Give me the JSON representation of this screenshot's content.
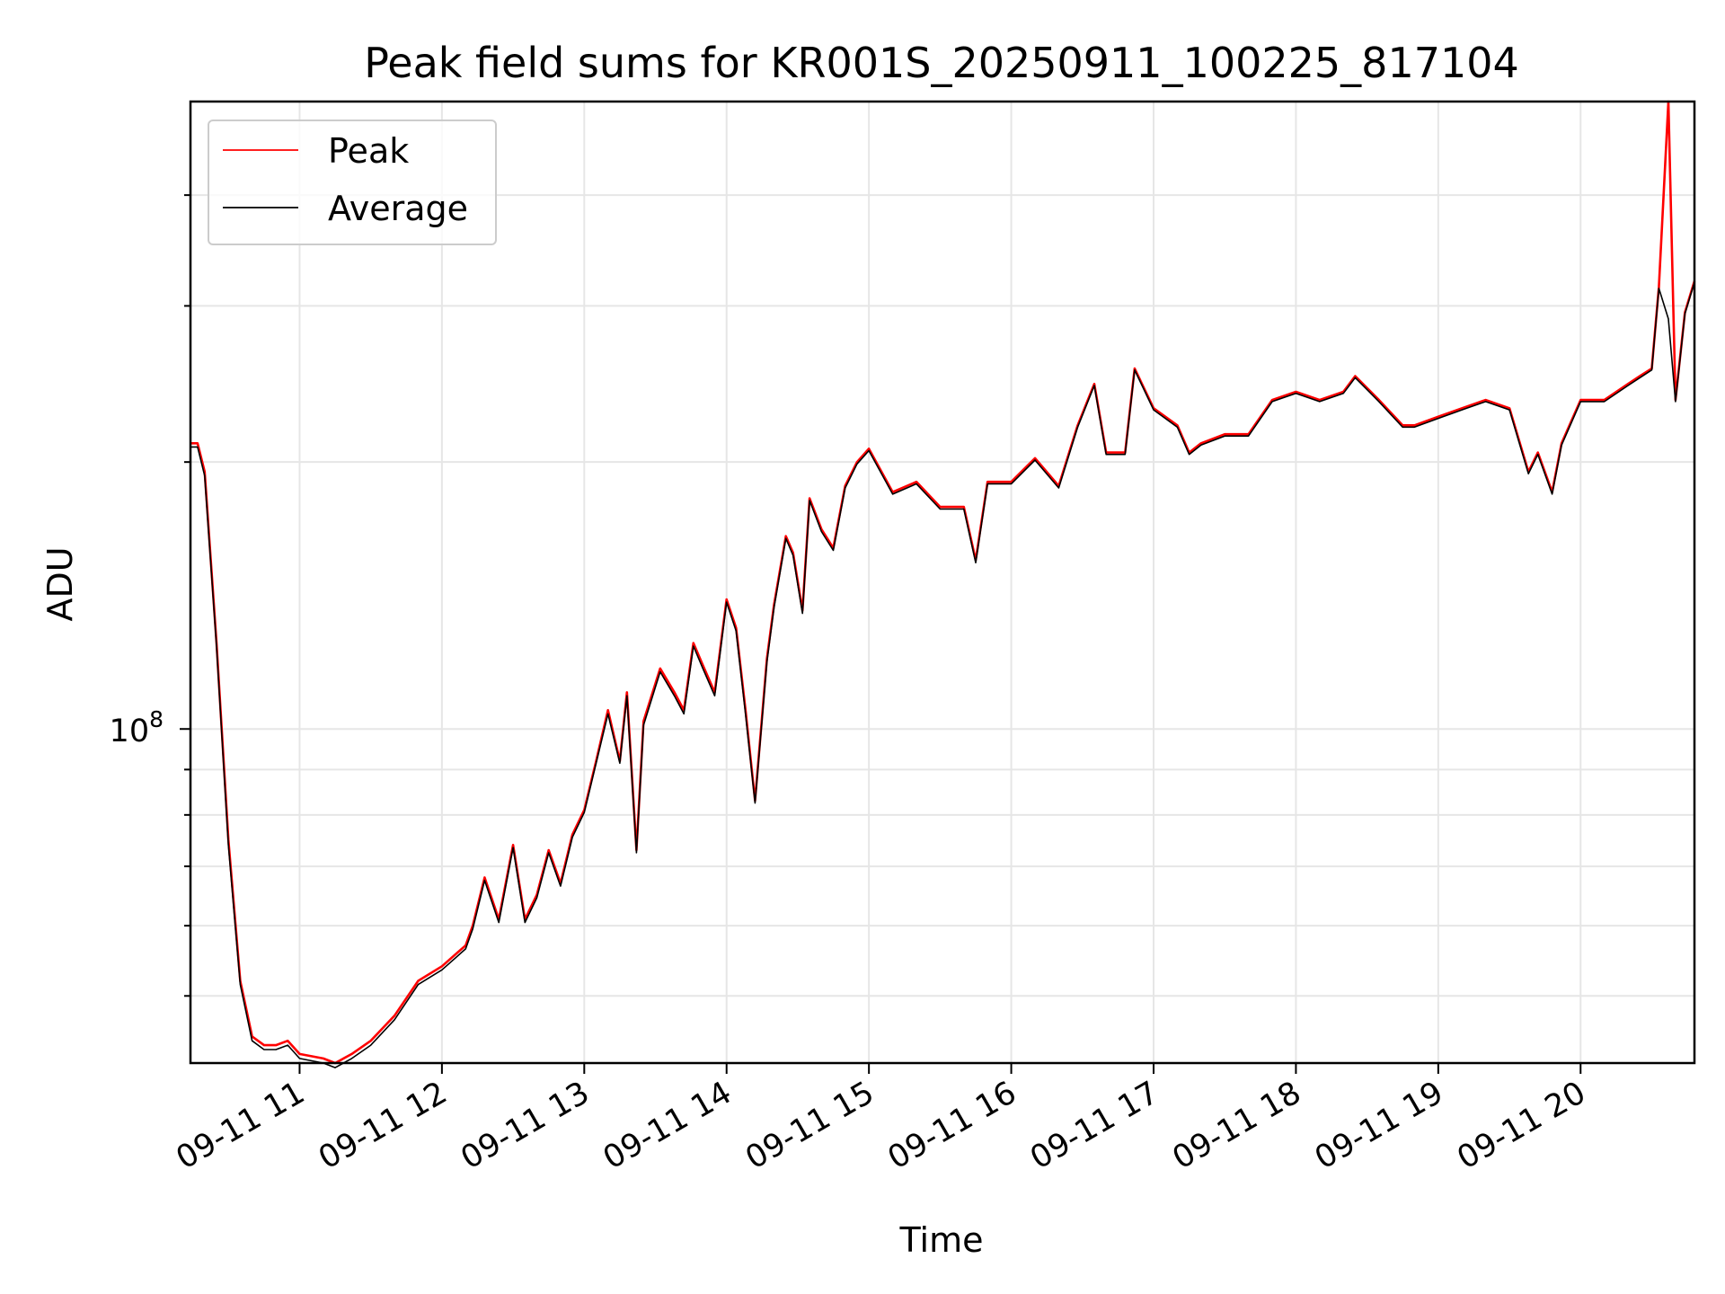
{
  "chart_data": {
    "type": "line",
    "title": "Peak field sums for KR001S_20250911_100225_817104",
    "xlabel": "Time",
    "ylabel": "ADU",
    "y_scale": "log",
    "x_tick_labels": [
      "09-11 11",
      "09-11 12",
      "09-11 13",
      "09-11 14",
      "09-11 15",
      "09-11 16",
      "09-11 17",
      "09-11 18",
      "09-11 19",
      "09-11 20"
    ],
    "y_tick_labels": [
      {
        "base": "10",
        "exponent": "8"
      }
    ],
    "xlim": [
      "09-11 10:14",
      "09-11 20:48"
    ],
    "ylim": [
      42000000.0,
      510000000.0
    ],
    "grid": true,
    "legend_location": "upper left",
    "colors": {
      "Peak": "#ff0000",
      "Average": "#000000"
    },
    "x": [
      "09-11 10:14",
      "09-11 10:17",
      "09-11 10:20",
      "09-11 10:25",
      "09-11 10:30",
      "09-11 10:35",
      "09-11 10:40",
      "09-11 10:45",
      "09-11 10:50",
      "09-11 10:55",
      "09-11 11:00",
      "09-11 11:10",
      "09-11 11:15",
      "09-11 11:22",
      "09-11 11:30",
      "09-11 11:40",
      "09-11 11:50",
      "09-11 12:00",
      "09-11 12:10",
      "09-11 12:13",
      "09-11 12:18",
      "09-11 12:24",
      "09-11 12:30",
      "09-11 12:35",
      "09-11 12:40",
      "09-11 12:45",
      "09-11 12:50",
      "09-11 12:55",
      "09-11 13:00",
      "09-11 13:05",
      "09-11 13:10",
      "09-11 13:15",
      "09-11 13:18",
      "09-11 13:22",
      "09-11 13:25",
      "09-11 13:32",
      "09-11 13:38",
      "09-11 13:42",
      "09-11 13:46",
      "09-11 13:50",
      "09-11 13:55",
      "09-11 14:00",
      "09-11 14:04",
      "09-11 14:08",
      "09-11 14:12",
      "09-11 14:17",
      "09-11 14:20",
      "09-11 14:25",
      "09-11 14:28",
      "09-11 14:32",
      "09-11 14:35",
      "09-11 14:40",
      "09-11 14:45",
      "09-11 14:50",
      "09-11 14:55",
      "09-11 15:00",
      "09-11 15:10",
      "09-11 15:20",
      "09-11 15:30",
      "09-11 15:40",
      "09-11 15:45",
      "09-11 15:50",
      "09-11 16:00",
      "09-11 16:10",
      "09-11 16:20",
      "09-11 16:28",
      "09-11 16:35",
      "09-11 16:40",
      "09-11 16:48",
      "09-11 16:52",
      "09-11 17:00",
      "09-11 17:10",
      "09-11 17:15",
      "09-11 17:20",
      "09-11 17:30",
      "09-11 17:40",
      "09-11 17:50",
      "09-11 18:00",
      "09-11 18:10",
      "09-11 18:20",
      "09-11 18:25",
      "09-11 18:35",
      "09-11 18:45",
      "09-11 18:50",
      "09-11 19:00",
      "09-11 19:10",
      "09-11 19:20",
      "09-11 19:30",
      "09-11 19:38",
      "09-11 19:42",
      "09-11 19:48",
      "09-11 19:52",
      "09-11 20:00",
      "09-11 20:10",
      "09-11 20:20",
      "09-11 20:25",
      "09-11 20:30",
      "09-11 20:33",
      "09-11 20:37",
      "09-11 20:40",
      "09-11 20:44",
      "09-11 20:48"
    ],
    "series": [
      {
        "name": "Peak",
        "values": [
          210000000.0,
          210000000.0,
          195000000.0,
          125000000.0,
          75000000.0,
          52000000.0,
          45000000.0,
          44000000.0,
          44000000.0,
          44500000.0,
          43000000.0,
          42500000.0,
          42000000.0,
          43000000.0,
          44500000.0,
          47500000.0,
          52000000.0,
          54000000.0,
          57000000.0,
          60000000.0,
          68000000.0,
          61000000.0,
          74000000.0,
          61000000.0,
          65000000.0,
          73000000.0,
          67000000.0,
          76000000.0,
          81000000.0,
          92000000.0,
          105000000.0,
          92000000.0,
          110000000.0,
          73000000.0,
          102000000.0,
          117000000.0,
          110000000.0,
          105000000.0,
          125000000.0,
          118000000.0,
          110000000.0,
          140000000.0,
          130000000.0,
          105000000.0,
          83000000.0,
          120000000.0,
          138000000.0,
          165000000.0,
          158000000.0,
          136000000.0,
          182000000.0,
          168000000.0,
          160000000.0,
          188000000.0,
          200000000.0,
          207000000.0,
          185000000.0,
          190000000.0,
          178000000.0,
          178000000.0,
          155000000.0,
          190000000.0,
          190000000.0,
          202000000.0,
          188000000.0,
          220000000.0,
          245000000.0,
          205000000.0,
          205000000.0,
          255000000.0,
          230000000.0,
          220000000.0,
          205000000.0,
          210000000.0,
          215000000.0,
          215000000.0,
          235000000.0,
          240000000.0,
          235000000.0,
          240000000.0,
          250000000.0,
          235000000.0,
          220000000.0,
          220000000.0,
          225000000.0,
          230000000.0,
          235000000.0,
          230000000.0,
          195000000.0,
          205000000.0,
          185000000.0,
          210000000.0,
          235000000.0,
          235000000.0,
          245000000.0,
          250000000.0,
          255000000.0,
          315000000.0,
          510000000.0,
          235000000.0,
          295000000.0,
          320000000.0
        ]
      },
      {
        "name": "Average",
        "values": [
          208000000.0,
          208000000.0,
          193000000.0,
          124000000.0,
          74000000.0,
          51500000.0,
          44500000.0,
          43500000.0,
          43500000.0,
          44000000.0,
          42500000.0,
          42000000.0,
          41500000.0,
          42500000.0,
          44000000.0,
          47000000.0,
          51500000.0,
          53500000.0,
          56500000.0,
          59500000.0,
          67500000.0,
          60500000.0,
          73500000.0,
          60500000.0,
          64500000.0,
          72500000.0,
          66500000.0,
          75500000.0,
          80500000.0,
          91500000.0,
          104000000.0,
          91500000.0,
          109000000.0,
          72500000.0,
          101000000.0,
          116000000.0,
          109000000.0,
          104000000.0,
          124000000.0,
          117000000.0,
          109000000.0,
          139000000.0,
          129000000.0,
          104000000.0,
          82500000.0,
          119000000.0,
          137000000.0,
          164000000.0,
          157000000.0,
          135000000.0,
          181000000.0,
          167000000.0,
          159000000.0,
          187000000.0,
          199000000.0,
          206000000.0,
          184000000.0,
          189000000.0,
          177000000.0,
          177000000.0,
          154000000.0,
          189000000.0,
          189000000.0,
          201000000.0,
          187000000.0,
          219000000.0,
          244000000.0,
          204000000.0,
          204000000.0,
          254000000.0,
          229000000.0,
          219000000.0,
          204000000.0,
          209000000.0,
          214000000.0,
          214000000.0,
          234000000.0,
          239000000.0,
          234000000.0,
          239000000.0,
          249000000.0,
          234000000.0,
          219000000.0,
          219000000.0,
          224000000.0,
          229000000.0,
          234000000.0,
          229000000.0,
          194000000.0,
          204000000.0,
          184000000.0,
          209000000.0,
          234000000.0,
          234000000.0,
          244000000.0,
          249000000.0,
          254000000.0,
          314000000.0,
          290000000.0,
          234000000.0,
          294000000.0,
          319000000.0
        ]
      }
    ]
  }
}
